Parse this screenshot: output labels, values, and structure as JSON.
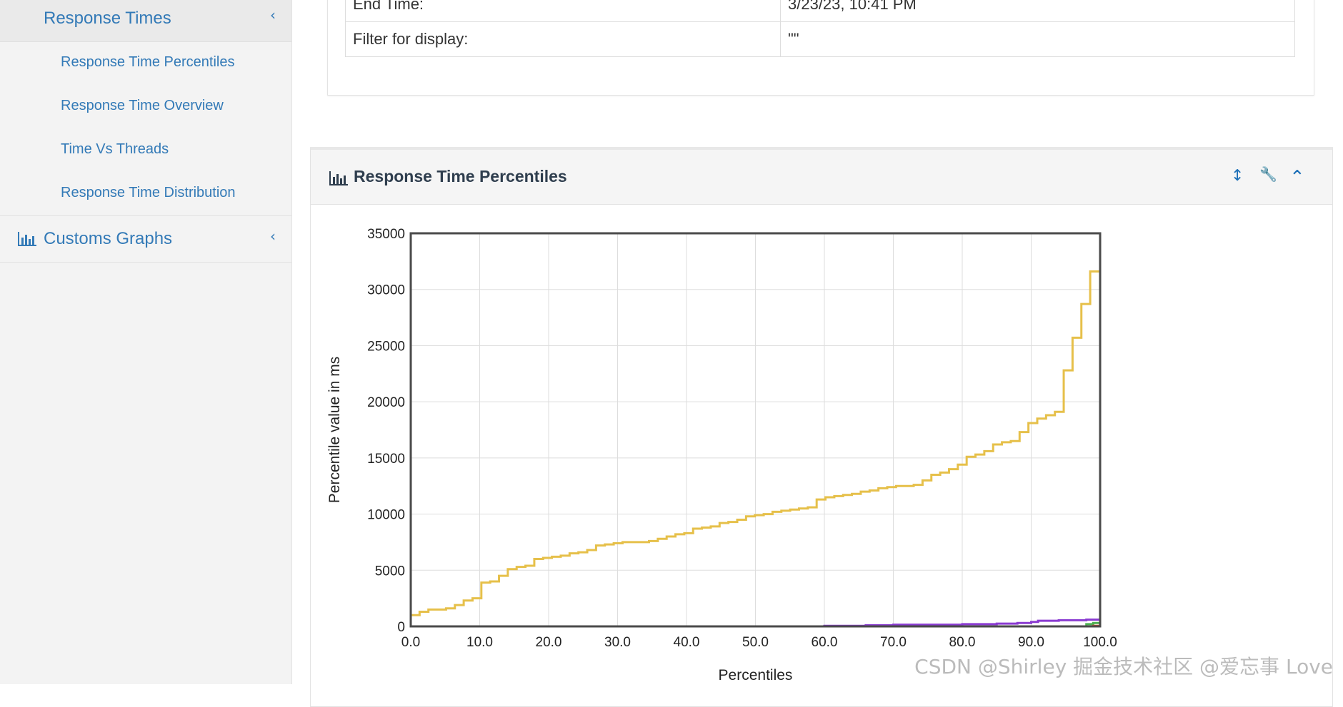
{
  "sidebar": {
    "response_times": {
      "label": "Response Times",
      "chevron": "‹"
    },
    "sub_items": [
      {
        "label": "Response Time Percentiles"
      },
      {
        "label": "Response Time Overview"
      },
      {
        "label": "Time Vs Threads"
      },
      {
        "label": "Response Time Distribution"
      }
    ],
    "customs_graphs": {
      "label": "Customs Graphs",
      "chevron": "‹",
      "icon": "bar-chart-icon"
    }
  },
  "info_table": {
    "rows": [
      {
        "key": "End Time:",
        "value": "3/23/23, 10:41 PM"
      },
      {
        "key": "Filter for display:",
        "value": "\"\""
      }
    ]
  },
  "panel": {
    "title": "Response Time Percentiles",
    "title_icon": "bar-chart-icon",
    "actions": [
      {
        "name": "resize-icon",
        "glyph": "↕"
      },
      {
        "name": "wrench-icon",
        "glyph": "🔧"
      },
      {
        "name": "collapse-icon",
        "glyph": "⌃"
      }
    ]
  },
  "chart_data": {
    "type": "line",
    "title": "",
    "xlabel": "Percentiles",
    "ylabel": "Percentile value in ms",
    "xlim": [
      0,
      100
    ],
    "ylim": [
      0,
      35000
    ],
    "x_ticks": [
      "0.0",
      "10.0",
      "20.0",
      "30.0",
      "40.0",
      "50.0",
      "60.0",
      "70.0",
      "80.0",
      "90.0",
      "100.0"
    ],
    "y_ticks": [
      "0",
      "5000",
      "10000",
      "15000",
      "20000",
      "25000",
      "30000",
      "35000"
    ],
    "grid": true,
    "series": [
      {
        "color": "#e6c04a",
        "points": [
          [
            0,
            1000
          ],
          [
            1,
            1300
          ],
          [
            2,
            1500
          ],
          [
            3,
            1500
          ],
          [
            4,
            1600
          ],
          [
            5,
            1900
          ],
          [
            6,
            2300
          ],
          [
            7,
            2500
          ],
          [
            8,
            3900
          ],
          [
            9,
            4000
          ],
          [
            10,
            4500
          ],
          [
            11,
            5100
          ],
          [
            12,
            5300
          ],
          [
            13,
            5400
          ],
          [
            14,
            6000
          ],
          [
            15,
            6100
          ],
          [
            16,
            6200
          ],
          [
            17,
            6300
          ],
          [
            18,
            6500
          ],
          [
            19,
            6600
          ],
          [
            20,
            6800
          ],
          [
            21,
            7200
          ],
          [
            22,
            7300
          ],
          [
            23,
            7400
          ],
          [
            24,
            7500
          ],
          [
            25,
            7500
          ],
          [
            26,
            7500
          ],
          [
            27,
            7600
          ],
          [
            28,
            7800
          ],
          [
            29,
            8000
          ],
          [
            30,
            8200
          ],
          [
            31,
            8300
          ],
          [
            32,
            8700
          ],
          [
            33,
            8800
          ],
          [
            34,
            8900
          ],
          [
            35,
            9200
          ],
          [
            36,
            9300
          ],
          [
            37,
            9500
          ],
          [
            38,
            9800
          ],
          [
            39,
            9900
          ],
          [
            40,
            10000
          ],
          [
            41,
            10200
          ],
          [
            42,
            10300
          ],
          [
            43,
            10400
          ],
          [
            44,
            10500
          ],
          [
            45,
            10600
          ],
          [
            46,
            11300
          ],
          [
            47,
            11500
          ],
          [
            48,
            11600
          ],
          [
            49,
            11700
          ],
          [
            50,
            11800
          ],
          [
            51,
            12000
          ],
          [
            52,
            12100
          ],
          [
            53,
            12300
          ],
          [
            54,
            12400
          ],
          [
            55,
            12500
          ],
          [
            56,
            12500
          ],
          [
            57,
            12600
          ],
          [
            58,
            13000
          ],
          [
            59,
            13500
          ],
          [
            60,
            13700
          ],
          [
            61,
            14000
          ],
          [
            62,
            14400
          ],
          [
            63,
            15100
          ],
          [
            64,
            15300
          ],
          [
            65,
            15600
          ],
          [
            66,
            16200
          ],
          [
            67,
            16400
          ],
          [
            68,
            16500
          ],
          [
            69,
            17300
          ],
          [
            70,
            18100
          ],
          [
            71,
            18500
          ],
          [
            72,
            18800
          ],
          [
            73,
            19100
          ],
          [
            74,
            22800
          ],
          [
            75,
            25700
          ],
          [
            76,
            28700
          ],
          [
            77,
            31600
          ]
        ],
        "x_step": 1.28
      },
      {
        "color": "#8a3bd1",
        "points": [
          [
            0,
            0
          ],
          [
            10,
            0
          ],
          [
            20,
            0
          ],
          [
            30,
            0
          ],
          [
            40,
            0
          ],
          [
            50,
            0
          ],
          [
            60,
            50
          ],
          [
            66,
            100
          ],
          [
            70,
            150
          ],
          [
            80,
            200
          ],
          [
            85,
            250
          ],
          [
            88,
            300
          ],
          [
            90,
            400
          ],
          [
            91,
            500
          ],
          [
            94,
            550
          ],
          [
            98,
            600
          ],
          [
            100,
            1100
          ]
        ]
      },
      {
        "color": "#4caf50",
        "points": [
          [
            0,
            0
          ],
          [
            50,
            0
          ],
          [
            80,
            0
          ],
          [
            95,
            0
          ],
          [
            98,
            200
          ],
          [
            99,
            300
          ],
          [
            100,
            600
          ]
        ]
      },
      {
        "color": "#d64f2a",
        "points": [
          [
            0,
            0
          ],
          [
            50,
            0
          ],
          [
            90,
            0
          ],
          [
            99,
            50
          ],
          [
            100,
            200
          ]
        ]
      }
    ]
  },
  "watermark": "CSDN @Shirley 掘金技术社区 @爱忘事 Love"
}
